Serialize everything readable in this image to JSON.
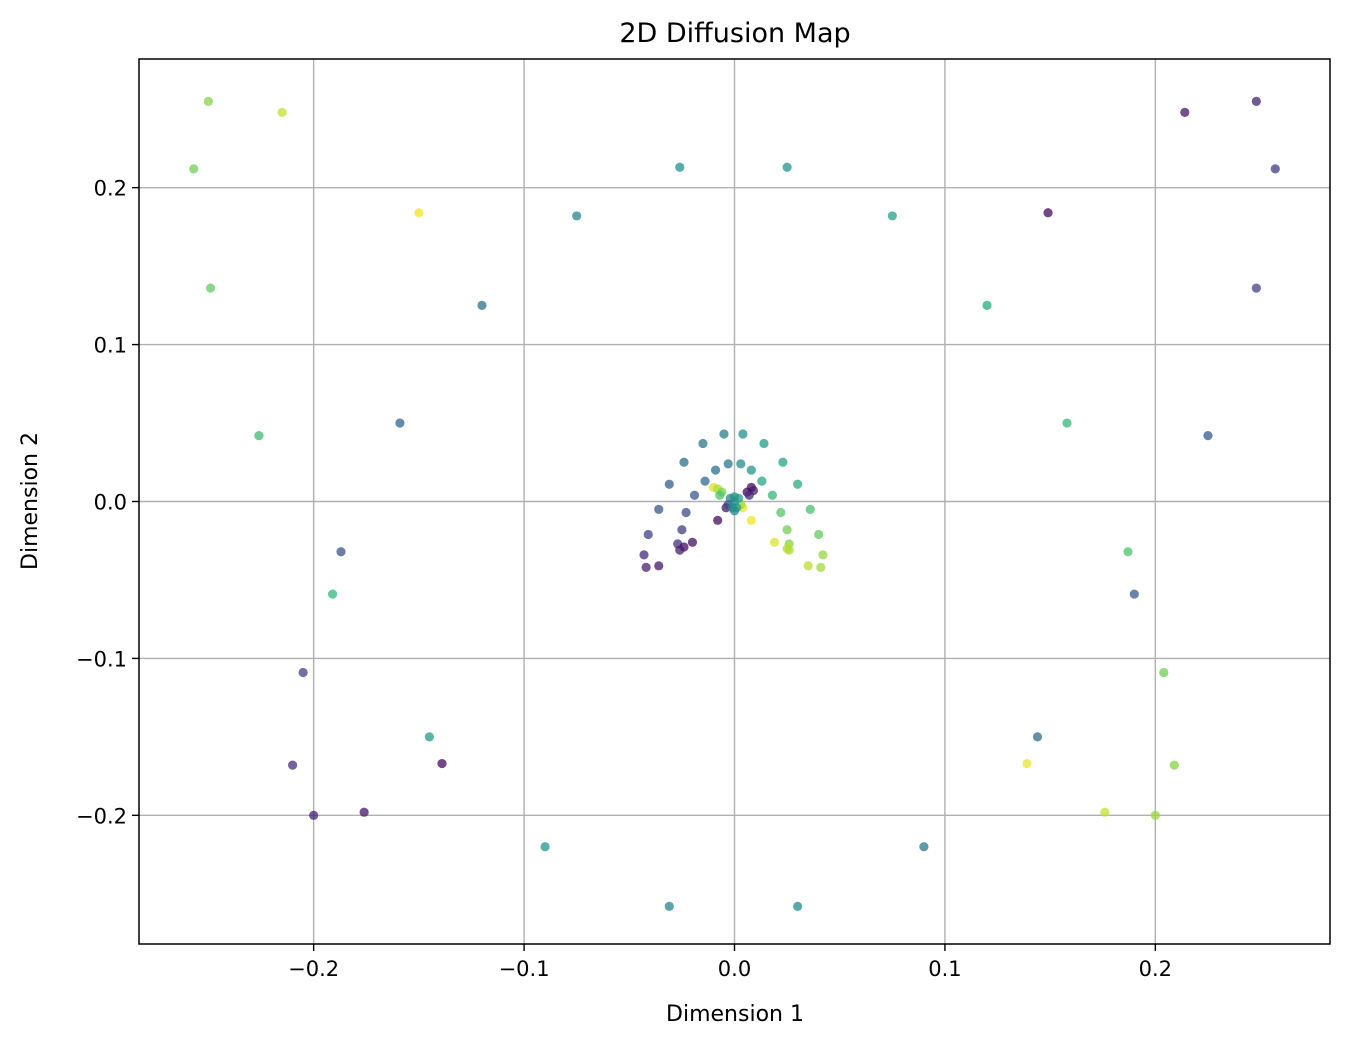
{
  "chart_data": {
    "type": "scatter",
    "title": "2D Diffusion Map",
    "xlabel": "Dimension 1",
    "ylabel": "Dimension 2",
    "xlim": [
      -0.283,
      0.283
    ],
    "ylim": [
      -0.282,
      0.282
    ],
    "xticks": [
      -0.2,
      -0.1,
      0.0,
      0.1,
      0.2
    ],
    "xtick_labels": [
      "−0.2",
      "−0.1",
      "0.0",
      "0.1",
      "0.2"
    ],
    "yticks": [
      -0.2,
      -0.1,
      0.0,
      0.1,
      0.2
    ],
    "ytick_labels": [
      "−0.2",
      "−0.1",
      "0.0",
      "0.1",
      "0.2"
    ],
    "grid": true,
    "colormap": "viridis",
    "marker_alpha": 0.75,
    "points": [
      {
        "x": -0.25,
        "y": 0.255,
        "c": 0.82
      },
      {
        "x": -0.215,
        "y": 0.248,
        "c": 0.92
      },
      {
        "x": -0.257,
        "y": 0.212,
        "c": 0.78
      },
      {
        "x": -0.249,
        "y": 0.136,
        "c": 0.76
      },
      {
        "x": -0.15,
        "y": 0.184,
        "c": 0.98
      },
      {
        "x": -0.226,
        "y": 0.042,
        "c": 0.68
      },
      {
        "x": -0.12,
        "y": 0.125,
        "c": 0.38
      },
      {
        "x": -0.075,
        "y": 0.182,
        "c": 0.45
      },
      {
        "x": -0.026,
        "y": 0.213,
        "c": 0.5
      },
      {
        "x": 0.025,
        "y": 0.213,
        "c": 0.52
      },
      {
        "x": 0.075,
        "y": 0.182,
        "c": 0.58
      },
      {
        "x": 0.12,
        "y": 0.125,
        "c": 0.62
      },
      {
        "x": -0.159,
        "y": 0.05,
        "c": 0.32
      },
      {
        "x": 0.158,
        "y": 0.05,
        "c": 0.66
      },
      {
        "x": 0.149,
        "y": 0.184,
        "c": 0.03
      },
      {
        "x": 0.214,
        "y": 0.248,
        "c": 0.06
      },
      {
        "x": 0.248,
        "y": 0.255,
        "c": 0.1
      },
      {
        "x": 0.257,
        "y": 0.212,
        "c": 0.18
      },
      {
        "x": 0.248,
        "y": 0.136,
        "c": 0.2
      },
      {
        "x": 0.225,
        "y": 0.042,
        "c": 0.28
      },
      {
        "x": -0.187,
        "y": -0.032,
        "c": 0.26
      },
      {
        "x": -0.191,
        "y": -0.059,
        "c": 0.66
      },
      {
        "x": -0.205,
        "y": -0.109,
        "c": 0.2
      },
      {
        "x": -0.145,
        "y": -0.15,
        "c": 0.55
      },
      {
        "x": -0.139,
        "y": -0.167,
        "c": 0.03
      },
      {
        "x": -0.21,
        "y": -0.168,
        "c": 0.14
      },
      {
        "x": -0.2,
        "y": -0.2,
        "c": 0.1
      },
      {
        "x": -0.176,
        "y": -0.198,
        "c": 0.06
      },
      {
        "x": -0.09,
        "y": -0.22,
        "c": 0.52
      },
      {
        "x": -0.031,
        "y": -0.258,
        "c": 0.46
      },
      {
        "x": 0.03,
        "y": -0.258,
        "c": 0.48
      },
      {
        "x": 0.09,
        "y": -0.22,
        "c": 0.4
      },
      {
        "x": 0.187,
        "y": -0.032,
        "c": 0.72
      },
      {
        "x": 0.19,
        "y": -0.059,
        "c": 0.3
      },
      {
        "x": 0.204,
        "y": -0.109,
        "c": 0.78
      },
      {
        "x": 0.144,
        "y": -0.15,
        "c": 0.34
      },
      {
        "x": 0.139,
        "y": -0.167,
        "c": 0.97
      },
      {
        "x": 0.209,
        "y": -0.168,
        "c": 0.82
      },
      {
        "x": 0.2,
        "y": -0.2,
        "c": 0.85
      },
      {
        "x": 0.176,
        "y": -0.198,
        "c": 0.92
      },
      {
        "x": -0.005,
        "y": 0.043,
        "c": 0.42
      },
      {
        "x": 0.004,
        "y": 0.043,
        "c": 0.5
      },
      {
        "x": -0.015,
        "y": 0.037,
        "c": 0.4
      },
      {
        "x": 0.014,
        "y": 0.037,
        "c": 0.55
      },
      {
        "x": -0.024,
        "y": 0.025,
        "c": 0.36
      },
      {
        "x": -0.003,
        "y": 0.024,
        "c": 0.4
      },
      {
        "x": 0.003,
        "y": 0.024,
        "c": 0.48
      },
      {
        "x": 0.023,
        "y": 0.025,
        "c": 0.58
      },
      {
        "x": -0.009,
        "y": 0.02,
        "c": 0.38
      },
      {
        "x": 0.008,
        "y": 0.02,
        "c": 0.52
      },
      {
        "x": -0.014,
        "y": 0.013,
        "c": 0.34
      },
      {
        "x": 0.013,
        "y": 0.013,
        "c": 0.6
      },
      {
        "x": -0.031,
        "y": 0.011,
        "c": 0.3
      },
      {
        "x": 0.03,
        "y": 0.011,
        "c": 0.62
      },
      {
        "x": -0.019,
        "y": 0.004,
        "c": 0.28
      },
      {
        "x": 0.018,
        "y": 0.004,
        "c": 0.66
      },
      {
        "x": -0.036,
        "y": -0.005,
        "c": 0.26
      },
      {
        "x": 0.036,
        "y": -0.005,
        "c": 0.7
      },
      {
        "x": -0.023,
        "y": -0.007,
        "c": 0.24
      },
      {
        "x": 0.022,
        "y": -0.007,
        "c": 0.74
      },
      {
        "x": -0.041,
        "y": -0.021,
        "c": 0.2
      },
      {
        "x": 0.04,
        "y": -0.021,
        "c": 0.76
      },
      {
        "x": -0.025,
        "y": -0.018,
        "c": 0.18
      },
      {
        "x": 0.025,
        "y": -0.018,
        "c": 0.78
      },
      {
        "x": -0.027,
        "y": -0.027,
        "c": 0.14
      },
      {
        "x": 0.026,
        "y": -0.027,
        "c": 0.82
      },
      {
        "x": -0.024,
        "y": -0.029,
        "c": 0.04
      },
      {
        "x": -0.02,
        "y": -0.026,
        "c": 0.05
      },
      {
        "x": 0.019,
        "y": -0.026,
        "c": 0.95
      },
      {
        "x": 0.025,
        "y": -0.03,
        "c": 0.9
      },
      {
        "x": -0.026,
        "y": -0.031,
        "c": 0.08
      },
      {
        "x": 0.026,
        "y": -0.031,
        "c": 0.88
      },
      {
        "x": -0.043,
        "y": -0.034,
        "c": 0.12
      },
      {
        "x": 0.042,
        "y": -0.034,
        "c": 0.84
      },
      {
        "x": -0.042,
        "y": -0.042,
        "c": 0.1
      },
      {
        "x": -0.036,
        "y": -0.041,
        "c": 0.06
      },
      {
        "x": 0.035,
        "y": -0.041,
        "c": 0.9
      },
      {
        "x": 0.041,
        "y": -0.042,
        "c": 0.86
      },
      {
        "x": -0.008,
        "y": -0.012,
        "c": 0.03
      },
      {
        "x": 0.008,
        "y": -0.012,
        "c": 0.98
      },
      {
        "x": -0.01,
        "y": 0.009,
        "c": 0.95
      },
      {
        "x": -0.008,
        "y": 0.008,
        "c": 0.88
      },
      {
        "x": -0.006,
        "y": 0.006,
        "c": 0.8
      },
      {
        "x": -0.007,
        "y": 0.004,
        "c": 0.72
      },
      {
        "x": 0.008,
        "y": 0.009,
        "c": 0.04
      },
      {
        "x": 0.009,
        "y": 0.007,
        "c": 0.08
      },
      {
        "x": 0.006,
        "y": 0.006,
        "c": 0.02
      },
      {
        "x": 0.007,
        "y": 0.004,
        "c": 0.12
      },
      {
        "x": -0.004,
        "y": -0.004,
        "c": 0.06
      },
      {
        "x": -0.003,
        "y": -0.002,
        "c": 0.22
      },
      {
        "x": 0.004,
        "y": -0.004,
        "c": 0.97
      },
      {
        "x": 0.003,
        "y": -0.002,
        "c": 0.85
      },
      {
        "x": 0.0,
        "y": 0.0,
        "c": 0.5
      },
      {
        "x": -0.001,
        "y": -0.004,
        "c": 0.46
      },
      {
        "x": 0.001,
        "y": -0.004,
        "c": 0.54
      },
      {
        "x": 0.0,
        "y": -0.006,
        "c": 0.48
      },
      {
        "x": -0.002,
        "y": 0.002,
        "c": 0.44
      },
      {
        "x": 0.002,
        "y": 0.002,
        "c": 0.56
      },
      {
        "x": 0.0,
        "y": 0.003,
        "c": 0.52
      }
    ]
  }
}
